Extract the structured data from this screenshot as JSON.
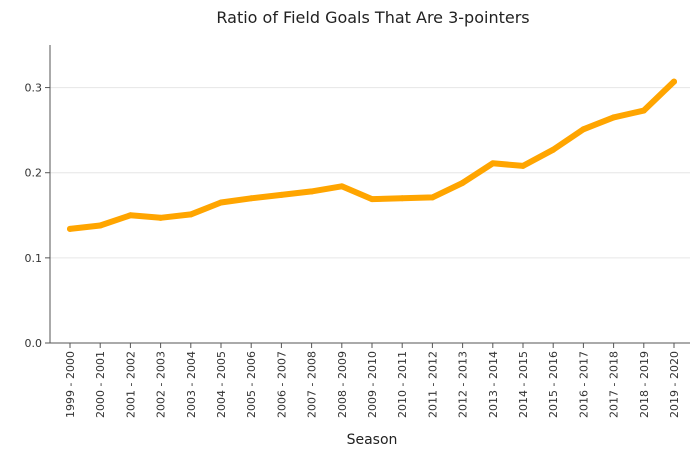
{
  "chart_data": {
    "type": "line",
    "title": "Ratio of Field Goals That Are 3-pointers",
    "xlabel": "Season",
    "ylabel": "",
    "categories": [
      "1999 - 2000",
      "2000 - 2001",
      "2001 - 2002",
      "2002 - 2003",
      "2003 - 2004",
      "2004 - 2005",
      "2005 - 2006",
      "2006 - 2007",
      "2007 - 2008",
      "2008 - 2009",
      "2009 - 2010",
      "2010 - 2011",
      "2011 - 2012",
      "2012 - 2013",
      "2013 - 2014",
      "2014 - 2015",
      "2015 - 2016",
      "2016 - 2017",
      "2017 - 2018",
      "2018 - 2019",
      "2019 - 2020"
    ],
    "series": [
      {
        "values": [
          0.134,
          0.138,
          0.15,
          0.147,
          0.151,
          0.165,
          0.17,
          0.174,
          0.178,
          0.184,
          0.169,
          0.17,
          0.171,
          0.188,
          0.211,
          0.208,
          0.227,
          0.251,
          0.265,
          0.273,
          0.307
        ],
        "color": "#ffa500"
      }
    ],
    "yticks": [
      "0.0",
      "0.1",
      "0.2",
      "0.3"
    ],
    "ylim": [
      0,
      0.35
    ],
    "grid": true,
    "legend": "none"
  }
}
